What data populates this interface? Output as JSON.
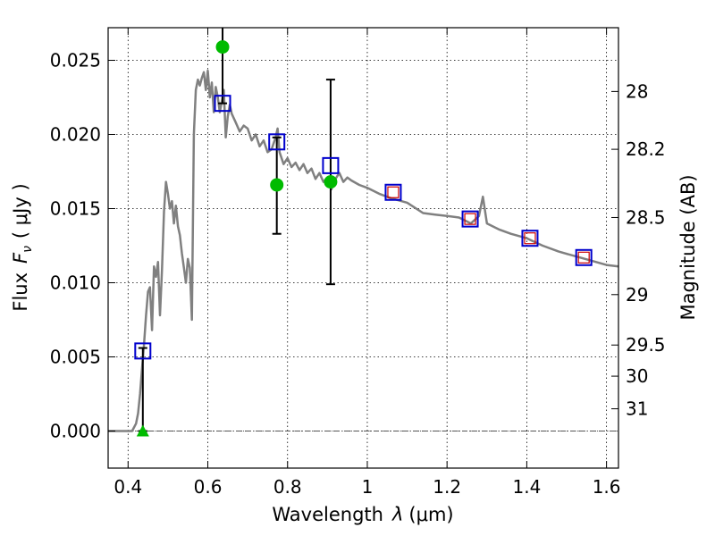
{
  "chart_data": {
    "type": "line",
    "xlabel_text": "Wavelength",
    "xlabel_symbol": "λ",
    "xlabel_unit": "(μm)",
    "ylabel_text": "Flux",
    "ylabel_symbol": "F",
    "ylabel_subscript": "ν",
    "ylabel_unit": "( μJy )",
    "y2label": "Magnitude (AB)",
    "xlim": [
      0.35,
      1.63
    ],
    "ylim": [
      -0.0025,
      0.0272
    ],
    "grid": true,
    "x_ticks": [
      0.4,
      0.6,
      0.8,
      1.0,
      1.2,
      1.4,
      1.6
    ],
    "x_tick_labels": [
      "0.4",
      "0.6",
      "0.8",
      "1",
      "1.2",
      "1.4",
      "1.6"
    ],
    "y_ticks": [
      0.0,
      0.005,
      0.01,
      0.015,
      0.02,
      0.025
    ],
    "y_tick_labels": [
      "0.000",
      "0.005",
      "0.010",
      "0.015",
      "0.020",
      "0.025"
    ],
    "y2_ticks": [
      {
        "label": "28",
        "flux": 0.0229
      },
      {
        "label": "28.2",
        "flux": 0.019
      },
      {
        "label": "28.5",
        "flux": 0.0144
      },
      {
        "label": "29",
        "flux": 0.0092
      },
      {
        "label": "29.5",
        "flux": 0.0058
      },
      {
        "label": "30",
        "flux": 0.0037
      },
      {
        "label": "31",
        "flux": 0.0015
      }
    ],
    "colors": {
      "template": "#808080",
      "model_box": "#0000cc",
      "model_box_inner": "#cc0000",
      "observed": "#00bb00",
      "errorbar": "#000000"
    },
    "template_spectrum": {
      "x": [
        0.35,
        0.41,
        0.42,
        0.425,
        0.43,
        0.435,
        0.44,
        0.445,
        0.45,
        0.455,
        0.46,
        0.465,
        0.47,
        0.475,
        0.48,
        0.485,
        0.49,
        0.495,
        0.5,
        0.505,
        0.51,
        0.515,
        0.52,
        0.525,
        0.53,
        0.535,
        0.54,
        0.545,
        0.55,
        0.555,
        0.56,
        0.565,
        0.57,
        0.575,
        0.58,
        0.585,
        0.59,
        0.595,
        0.6,
        0.605,
        0.61,
        0.615,
        0.62,
        0.625,
        0.63,
        0.635,
        0.64,
        0.645,
        0.65,
        0.655,
        0.66,
        0.67,
        0.68,
        0.69,
        0.7,
        0.71,
        0.72,
        0.73,
        0.74,
        0.75,
        0.76,
        0.77,
        0.775,
        0.78,
        0.79,
        0.8,
        0.81,
        0.82,
        0.83,
        0.84,
        0.85,
        0.86,
        0.87,
        0.88,
        0.89,
        0.9,
        0.91,
        0.92,
        0.93,
        0.94,
        0.95,
        0.96,
        0.98,
        1.0,
        1.03,
        1.06,
        1.1,
        1.14,
        1.17,
        1.2,
        1.23,
        1.26,
        1.28,
        1.29,
        1.3,
        1.33,
        1.36,
        1.4,
        1.44,
        1.48,
        1.52,
        1.56,
        1.6,
        1.63
      ],
      "y": [
        0.0,
        0.0,
        0.0005,
        0.0012,
        0.0025,
        0.0042,
        0.0058,
        0.0078,
        0.0094,
        0.0097,
        0.0068,
        0.0111,
        0.0104,
        0.0114,
        0.0078,
        0.0108,
        0.0148,
        0.0168,
        0.016,
        0.015,
        0.0155,
        0.014,
        0.0152,
        0.0138,
        0.0132,
        0.012,
        0.011,
        0.01,
        0.0116,
        0.011,
        0.0075,
        0.02,
        0.023,
        0.0237,
        0.0233,
        0.0238,
        0.0242,
        0.023,
        0.0243,
        0.0225,
        0.0235,
        0.0215,
        0.0232,
        0.0225,
        0.0215,
        0.0222,
        0.023,
        0.0198,
        0.0212,
        0.022,
        0.0214,
        0.0208,
        0.0202,
        0.0206,
        0.0204,
        0.0196,
        0.02,
        0.0192,
        0.0196,
        0.0188,
        0.019,
        0.0198,
        0.0204,
        0.0188,
        0.018,
        0.0184,
        0.0178,
        0.0181,
        0.0176,
        0.018,
        0.0174,
        0.0177,
        0.017,
        0.0174,
        0.0168,
        0.0171,
        0.0163,
        0.017,
        0.0174,
        0.0168,
        0.0171,
        0.0169,
        0.0166,
        0.0164,
        0.016,
        0.0157,
        0.0154,
        0.0147,
        0.0146,
        0.0145,
        0.0144,
        0.014,
        0.0145,
        0.0158,
        0.014,
        0.0136,
        0.0133,
        0.013,
        0.0125,
        0.0121,
        0.0118,
        0.0115,
        0.0112,
        0.0111
      ]
    },
    "model_photometry": {
      "x": [
        0.437,
        0.637,
        0.773,
        0.908,
        1.065,
        1.258,
        1.408,
        1.543
      ],
      "y": [
        0.0054,
        0.0221,
        0.0195,
        0.0179,
        0.0161,
        0.0143,
        0.013,
        0.0117
      ]
    },
    "observed_photometry": {
      "x": [
        0.437,
        0.637,
        0.773,
        0.908
      ],
      "y": [
        0.0,
        0.0259,
        0.0166,
        0.0168
      ],
      "err_low": [
        0.0,
        0.0221,
        0.0133,
        0.0099
      ],
      "err_high": [
        0.0056,
        0.0272,
        0.0198,
        0.0237
      ],
      "upper_limit": [
        true,
        false,
        false,
        false
      ]
    },
    "zero_line": 0.0
  }
}
